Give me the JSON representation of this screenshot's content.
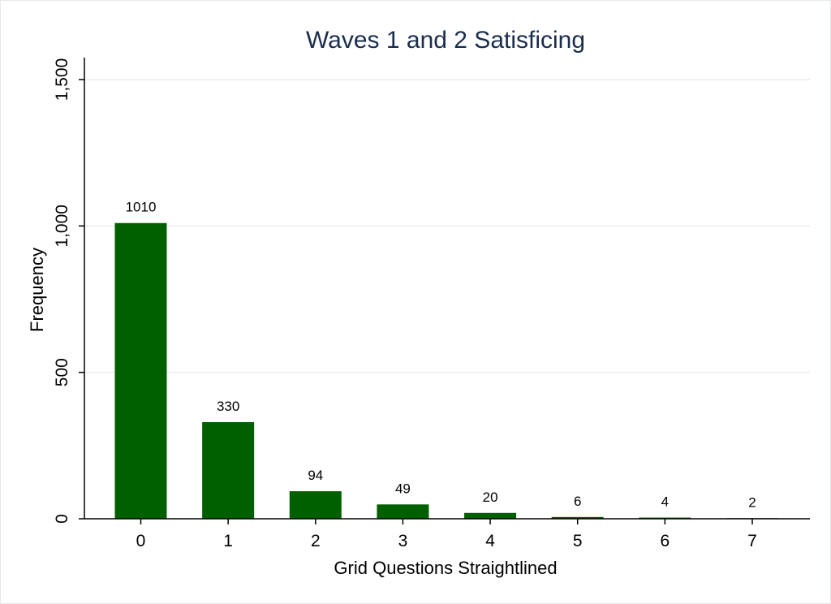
{
  "chart_data": {
    "type": "bar",
    "title": "Waves 1 and 2 Satisficing",
    "xlabel": "Grid Questions Straightlined",
    "ylabel": "Frequency",
    "categories": [
      "0",
      "1",
      "2",
      "3",
      "4",
      "5",
      "6",
      "7"
    ],
    "values": [
      1010,
      330,
      94,
      49,
      20,
      6,
      4,
      2
    ],
    "data_labels": [
      "1010",
      "330",
      "94",
      "49",
      "20",
      "6",
      "4",
      "2"
    ],
    "ylim": [
      0,
      1500
    ],
    "yticks": [
      0,
      500,
      1000,
      1500
    ],
    "ytick_labels": [
      "0",
      "500",
      "1,000",
      "1,500"
    ],
    "grid": true,
    "legend": "none",
    "colors": {
      "bar": "#006000",
      "title": "#1a2d4d",
      "grid": "#e8efee",
      "axis": "#000000"
    }
  }
}
